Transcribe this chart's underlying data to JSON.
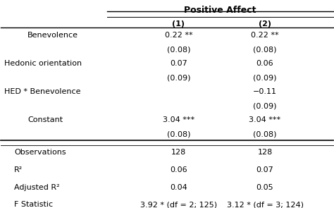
{
  "title": "Positive Affect",
  "col_headers": [
    "(1)",
    "(2)"
  ],
  "rows": [
    {
      "label": "Benevolence",
      "indent": true,
      "val1": "0.22 **",
      "val2": "0.22 **"
    },
    {
      "label": "",
      "indent": true,
      "val1": "(0.08)",
      "val2": "(0.08)"
    },
    {
      "label": "Hedonic orientation",
      "indent": false,
      "val1": "0.07",
      "val2": "0.06"
    },
    {
      "label": "",
      "indent": false,
      "val1": "(0.09)",
      "val2": "(0.09)"
    },
    {
      "label": "HED * Benevolence",
      "indent": false,
      "val1": "",
      "val2": "−0.11"
    },
    {
      "label": "",
      "indent": false,
      "val1": "",
      "val2": "(0.09)"
    },
    {
      "label": "Constant",
      "indent": true,
      "val1": "3.04 ***",
      "val2": "3.04 ***"
    },
    {
      "label": "",
      "indent": true,
      "val1": "(0.08)",
      "val2": "(0.08)"
    }
  ],
  "stats_rows": [
    {
      "label": "Observations",
      "val1": "128",
      "val2": "128"
    },
    {
      "label": "R²",
      "val1": "0.06",
      "val2": "0.07"
    },
    {
      "label": "Adjusted R²",
      "val1": "0.04",
      "val2": "0.05"
    },
    {
      "label": "F Statistic",
      "val1": "3.92 * (df = 2; 125)",
      "val2": "3.12 * (df = 3; 124)"
    }
  ],
  "bg_color": "#ffffff",
  "text_color": "#000000",
  "font_size": 8.0,
  "title_font_size": 9.0
}
